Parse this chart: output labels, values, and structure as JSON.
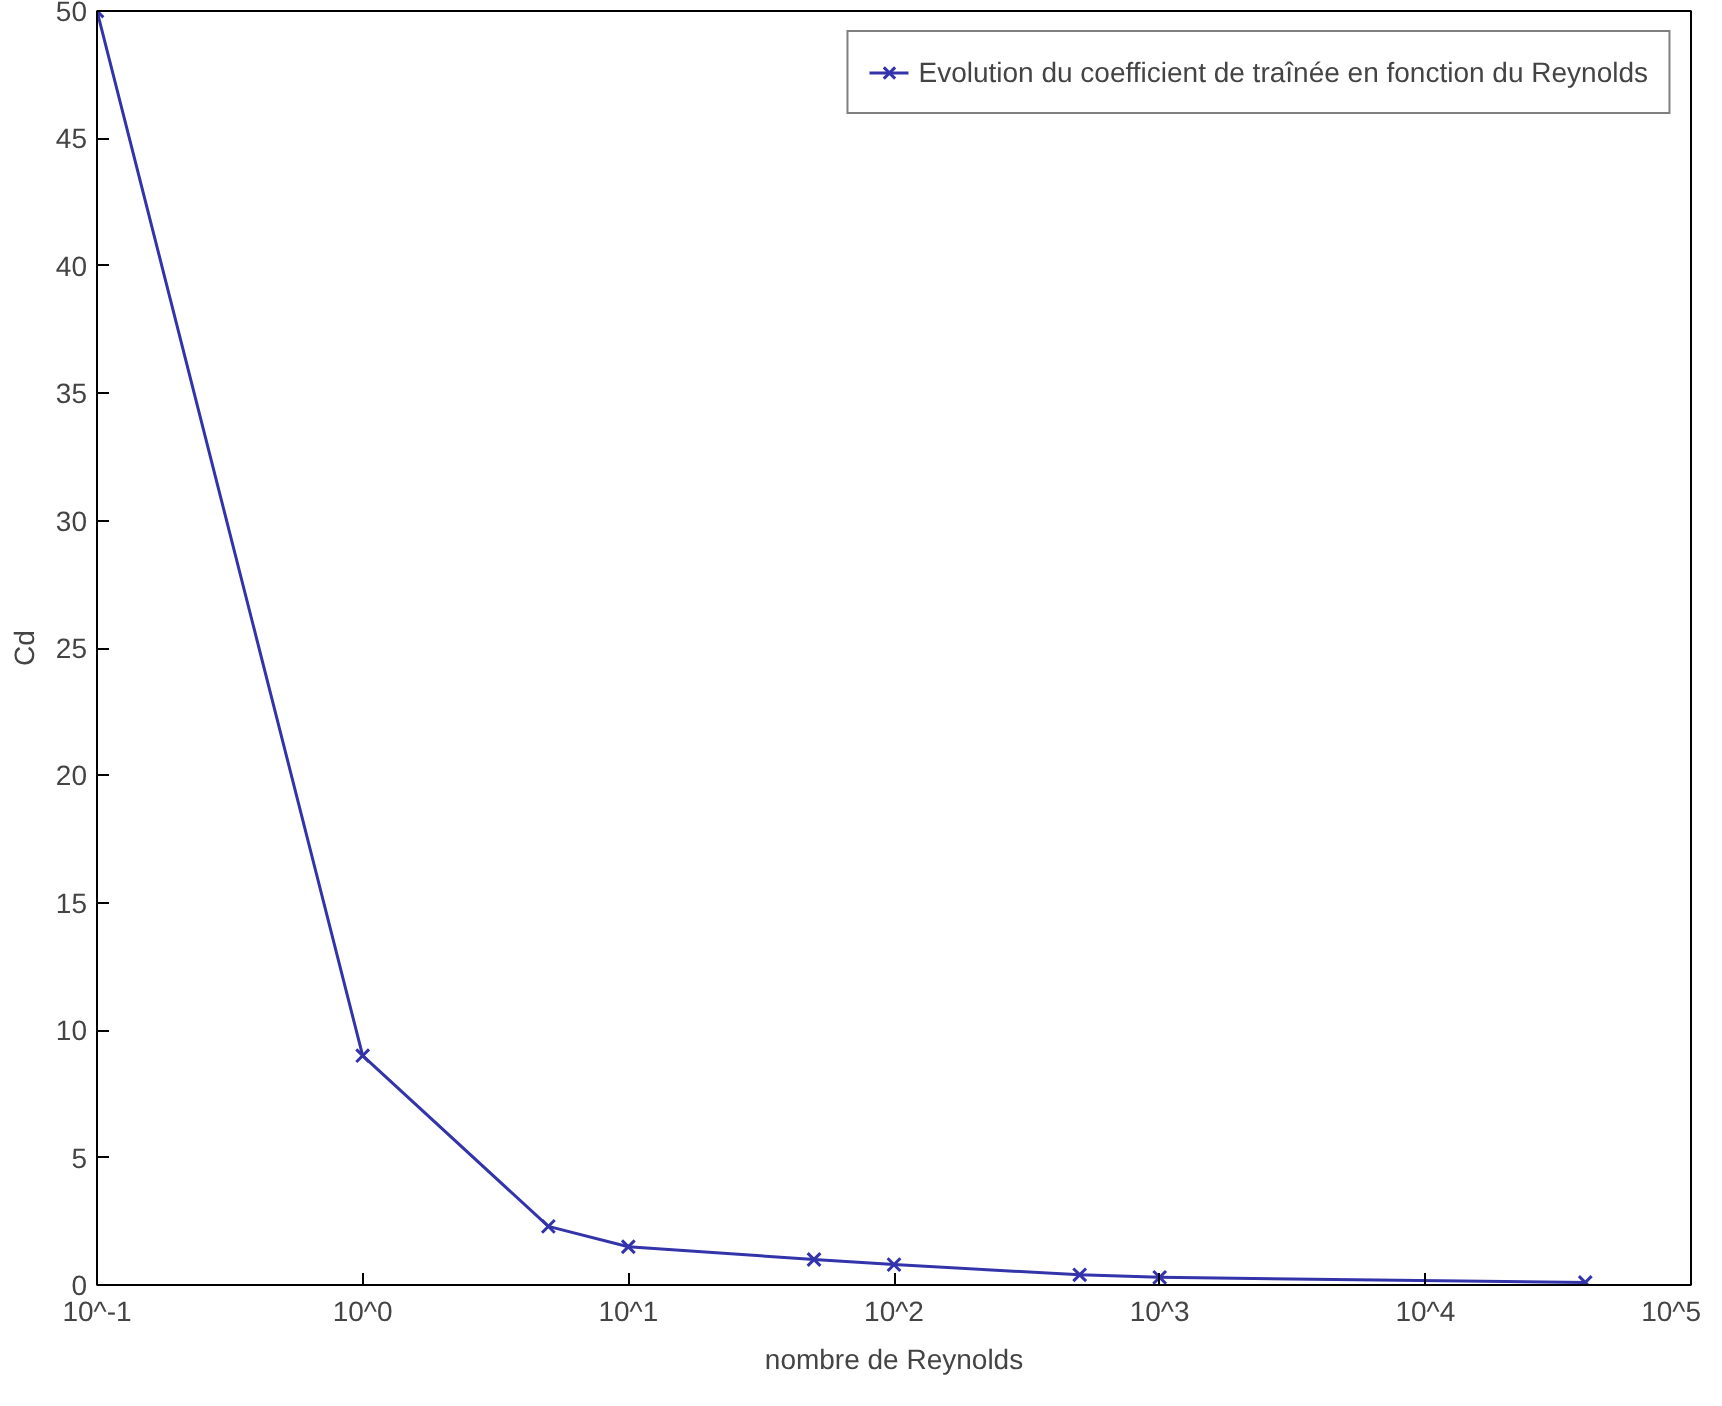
{
  "chart_data": {
    "type": "line",
    "xlabel": "nombre de Reynolds",
    "ylabel": "Cd",
    "log": "x",
    "x": [
      0.1,
      1,
      5,
      10,
      50,
      100,
      500,
      1000,
      40000
    ],
    "series": [
      {
        "name": "Evolution du coefficient de traînée en fonction du Reynolds",
        "color": "#3333aa",
        "values": [
          50,
          9,
          2.3,
          1.5,
          1.0,
          0.8,
          0.4,
          0.3,
          0.1
        ]
      }
    ],
    "xlim": [
      0.1,
      100000
    ],
    "ylim": [
      0,
      50
    ],
    "xticks": [
      {
        "value": 0.1,
        "label": "10^-1"
      },
      {
        "value": 1,
        "label": "10^0"
      },
      {
        "value": 10,
        "label": "10^1"
      },
      {
        "value": 100,
        "label": "10^2"
      },
      {
        "value": 1000,
        "label": "10^3"
      },
      {
        "value": 10000,
        "label": "10^4"
      },
      {
        "value": 100000,
        "label": "10^5"
      }
    ],
    "yticks": [
      0,
      5,
      10,
      15,
      20,
      25,
      30,
      35,
      40,
      45,
      50
    ],
    "marker": "cross",
    "line_style": "solid",
    "grid": false,
    "legend": "top right"
  }
}
